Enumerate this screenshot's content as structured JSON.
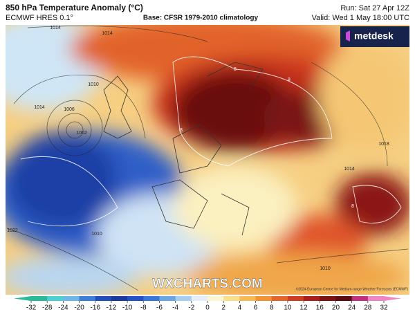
{
  "header": {
    "title": "850 hPa Temperature Anomaly (°C)",
    "model": "ECMWF HRES 0.1°",
    "base": "Base: CFSR 1979-2010 climatology",
    "run": "Run: Sat 27 Apr 12Z",
    "valid": "Valid: Wed 1 May 18:00 UTC"
  },
  "logo": "metdesk",
  "watermark": "WXCHARTS.COM",
  "copyright": "©2024 European Centre for Medium-range Weather Forecasts (ECMWF)",
  "map": {
    "contour_labels": [
      "1014",
      "1014",
      "1010",
      "1006",
      "1002",
      "1014",
      "1018",
      "1022",
      "1010",
      "1010",
      "1014",
      "8",
      "8",
      "8",
      "8"
    ]
  },
  "colorbar": {
    "ticks": [
      -32,
      -28,
      -24,
      -20,
      -16,
      -12,
      -10,
      -8,
      -6,
      -4,
      -2,
      0,
      2,
      4,
      6,
      8,
      10,
      12,
      16,
      20,
      24,
      28,
      32
    ],
    "colors": [
      "#2bb99a",
      "#4fd1d4",
      "#6fb6ea",
      "#3b7fd6",
      "#1f4fb8",
      "#1a3a9e",
      "#2452c2",
      "#3a78d8",
      "#6aa6e6",
      "#a7cdf2",
      "#e3eefa",
      "#fbf6d2",
      "#f9df8a",
      "#f6bb55",
      "#f19437",
      "#e4662a",
      "#cf3d22",
      "#a81f1c",
      "#7c1214",
      "#5a0c10",
      "#c0337a",
      "#ef86c4"
    ]
  }
}
